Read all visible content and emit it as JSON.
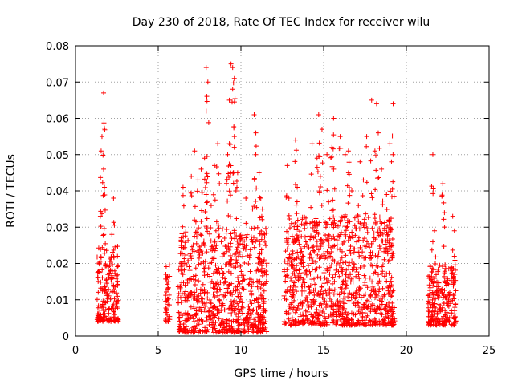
{
  "chart_data": {
    "type": "scatter",
    "title": "Day 230 of 2018, Rate Of TEC Index for receiver wilu",
    "xlabel": "GPS time / hours",
    "ylabel": "ROTI / TECUs",
    "xlim": [
      0,
      25
    ],
    "ylim": [
      0,
      0.08
    ],
    "x_ticks": [
      0,
      5,
      10,
      15,
      20,
      25
    ],
    "y_ticks": [
      0,
      0.01,
      0.02,
      0.03,
      0.04,
      0.05,
      0.06,
      0.07,
      0.08
    ],
    "x_tick_labels": [
      "0",
      "5",
      "10",
      "15",
      "20",
      "25"
    ],
    "y_tick_labels": [
      "0",
      "0.01",
      "0.02",
      "0.03",
      "0.04",
      "0.05",
      "0.06",
      "0.07",
      "0.08"
    ],
    "grid": true,
    "marker": "+",
    "marker_color": "#ff0000",
    "clusters": [
      {
        "x": [
          1.3,
          2.6
        ],
        "y_dense": [
          0.004,
          0.025
        ],
        "peaks": [
          [
            1.7,
            0.067
          ],
          [
            1.6,
            0.055
          ],
          [
            1.55,
            0.051
          ],
          [
            1.7,
            0.046
          ],
          [
            1.75,
            0.041
          ],
          [
            2.3,
            0.038
          ],
          [
            1.5,
            0.033
          ],
          [
            2.2,
            0.028
          ]
        ]
      },
      {
        "x": [
          5.4,
          5.7
        ],
        "y_dense": [
          0.004,
          0.02
        ],
        "peaks": []
      },
      {
        "x": [
          6.2,
          11.6
        ],
        "y_dense": [
          0.001,
          0.03
        ],
        "peaks": [
          [
            9.4,
            0.075
          ],
          [
            9.5,
            0.074
          ],
          [
            7.9,
            0.074
          ],
          [
            9.6,
            0.071
          ],
          [
            8.0,
            0.07
          ],
          [
            9.5,
            0.068
          ],
          [
            9.3,
            0.065
          ],
          [
            7.9,
            0.062
          ],
          [
            10.8,
            0.061
          ],
          [
            10.9,
            0.056
          ],
          [
            9.6,
            0.055
          ],
          [
            9.3,
            0.053
          ],
          [
            8.6,
            0.053
          ],
          [
            7.2,
            0.051
          ],
          [
            9.2,
            0.05
          ],
          [
            10.9,
            0.05
          ],
          [
            7.8,
            0.049
          ],
          [
            8.4,
            0.047
          ],
          [
            7.6,
            0.046
          ],
          [
            11.1,
            0.045
          ],
          [
            9.8,
            0.045
          ],
          [
            7.0,
            0.044
          ],
          [
            7.4,
            0.043
          ],
          [
            8.7,
            0.042
          ],
          [
            6.5,
            0.041
          ],
          [
            9.7,
            0.04
          ],
          [
            7.9,
            0.039
          ],
          [
            10.3,
            0.038
          ],
          [
            11.2,
            0.038
          ],
          [
            8.2,
            0.036
          ],
          [
            10.7,
            0.035
          ],
          [
            11.3,
            0.035
          ]
        ]
      },
      {
        "x": [
          12.6,
          19.3
        ],
        "y_dense": [
          0.003,
          0.033
        ],
        "peaks": [
          [
            17.9,
            0.065
          ],
          [
            19.2,
            0.064
          ],
          [
            18.2,
            0.064
          ],
          [
            14.7,
            0.061
          ],
          [
            15.6,
            0.06
          ],
          [
            14.9,
            0.057
          ],
          [
            18.3,
            0.056
          ],
          [
            16.0,
            0.055
          ],
          [
            17.6,
            0.055
          ],
          [
            13.3,
            0.054
          ],
          [
            19.0,
            0.053
          ],
          [
            14.3,
            0.053
          ],
          [
            15.5,
            0.052
          ],
          [
            16.5,
            0.051
          ],
          [
            18.1,
            0.051
          ],
          [
            15.2,
            0.05
          ],
          [
            16.3,
            0.05
          ],
          [
            14.6,
            0.049
          ],
          [
            17.2,
            0.048
          ],
          [
            19.1,
            0.048
          ],
          [
            12.8,
            0.047
          ],
          [
            18.5,
            0.046
          ],
          [
            15.6,
            0.046
          ],
          [
            16.5,
            0.045
          ],
          [
            14.8,
            0.044
          ],
          [
            17.4,
            0.043
          ],
          [
            13.4,
            0.041
          ],
          [
            16.7,
            0.04
          ],
          [
            18.8,
            0.039
          ],
          [
            12.9,
            0.038
          ],
          [
            15.3,
            0.037
          ],
          [
            17.1,
            0.036
          ]
        ]
      },
      {
        "x": [
          21.3,
          23.0
        ],
        "y_dense": [
          0.003,
          0.02
        ],
        "peaks": [
          [
            21.6,
            0.05
          ],
          [
            22.2,
            0.042
          ],
          [
            22.3,
            0.034
          ],
          [
            22.8,
            0.033
          ],
          [
            21.7,
            0.029
          ],
          [
            22.9,
            0.029
          ],
          [
            21.6,
            0.026
          ],
          [
            22.9,
            0.022
          ]
        ]
      }
    ]
  }
}
